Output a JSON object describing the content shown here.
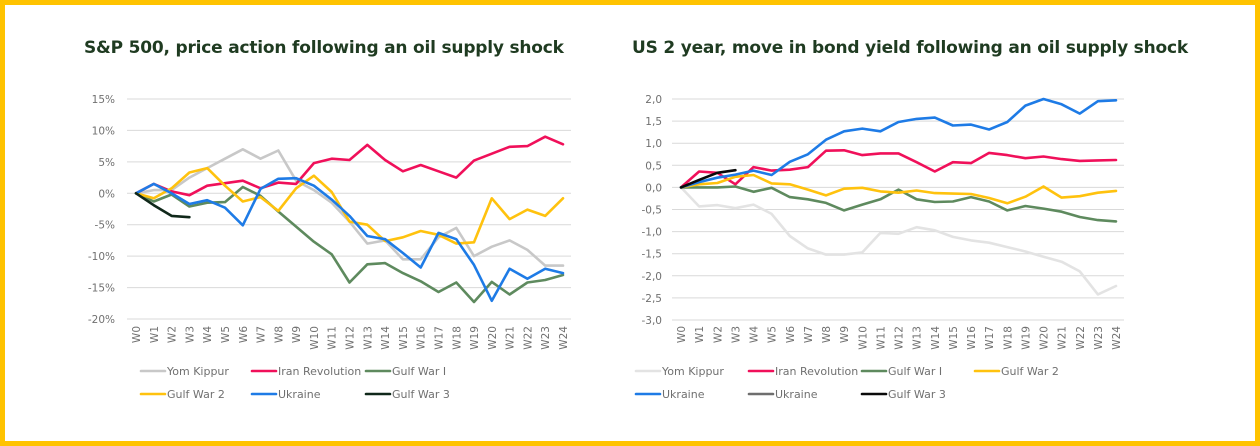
{
  "frame": {
    "border_color": "#FFC300"
  },
  "chart_data": [
    {
      "type": "line",
      "title": "S&P 500, price action following an oil supply shock",
      "xlabel": "",
      "ylabel": "",
      "x": [
        "W0",
        "W1",
        "W2",
        "W3",
        "W4",
        "W5",
        "W6",
        "W7",
        "W8",
        "W9",
        "W10",
        "W11",
        "W12",
        "W13",
        "W14",
        "W15",
        "W16",
        "W17",
        "W18",
        "W19",
        "W20",
        "W21",
        "W22",
        "W23",
        "W24"
      ],
      "yticks": [
        15,
        10,
        5,
        0,
        -5,
        -10,
        -15,
        -20
      ],
      "ytick_labels": [
        "15%",
        "10%",
        "5%",
        "0%",
        "-5%",
        "-10%",
        "-15%",
        "-20%"
      ],
      "ylim": [
        -20,
        15
      ],
      "grid": true,
      "legend_position": "bottom",
      "series": [
        {
          "name": "Yom Kippur",
          "color": "#C8C8C8",
          "values": [
            0,
            0.5,
            0.5,
            2.5,
            4,
            5.5,
            7,
            5.5,
            6.8,
            2,
            0.5,
            -1.5,
            -4.5,
            -8,
            -7.5,
            -10.5,
            -10.5,
            -7,
            -5.5,
            -10,
            -8.5,
            -7.5,
            -9,
            -11.5,
            -11.5
          ]
        },
        {
          "name": "Iran Revolution",
          "color": "#F0105A",
          "values": [
            0,
            1.5,
            0.3,
            -0.3,
            1.2,
            1.6,
            2,
            0.8,
            1.7,
            1.5,
            4.8,
            5.5,
            5.3,
            7.7,
            5.3,
            3.5,
            4.5,
            3.5,
            2.5,
            5.2,
            6.3,
            7.4,
            7.5,
            9,
            7.8
          ]
        },
        {
          "name": "Gulf War I",
          "color": "#5E8A5E",
          "values": [
            0,
            -1.3,
            -0.2,
            -2.1,
            -1.5,
            -1.4,
            1,
            -0.4,
            -2.9,
            -5.3,
            -7.7,
            -9.7,
            -14.2,
            -11.3,
            -11.1,
            -12.7,
            -14,
            -15.7,
            -14.2,
            -17.3,
            -14.1,
            -16.1,
            -14.2,
            -13.8,
            -13
          ]
        },
        {
          "name": "Gulf War 2",
          "color": "#FFC20E",
          "values": [
            0,
            -0.8,
            0.8,
            3.3,
            4,
            1.2,
            -1.3,
            -0.6,
            -2.8,
            0.8,
            2.8,
            0.2,
            -4.5,
            -5,
            -7.6,
            -7,
            -6,
            -6.6,
            -8,
            -7.8,
            -0.8,
            -4.1,
            -2.6,
            -3.6,
            -0.8
          ]
        },
        {
          "name": "Ukraine",
          "color": "#1E7BE6",
          "values": [
            0,
            1.5,
            0,
            -1.7,
            -1.1,
            -2.3,
            -5.1,
            0.7,
            2.3,
            2.4,
            1.2,
            -1,
            -3.6,
            -6.8,
            -7.3,
            -9.5,
            -11.8,
            -6.3,
            -7.3,
            -11.4,
            -17.1,
            -12,
            -13.6,
            -12,
            -12.7
          ]
        },
        {
          "name": "Gulf War 3",
          "color": "#10281A",
          "values": [
            0,
            -1.9,
            -3.6,
            -3.8
          ]
        }
      ]
    },
    {
      "type": "line",
      "title": "US 2 year, move in bond yield following an oil supply shock",
      "xlabel": "",
      "ylabel": "",
      "x": [
        "W0",
        "W1",
        "W2",
        "W3",
        "W4",
        "W5",
        "W6",
        "W7",
        "W8",
        "W9",
        "W10",
        "W11",
        "W12",
        "W13",
        "W14",
        "W15",
        "W16",
        "W17",
        "W18",
        "W19",
        "W20",
        "W21",
        "W22",
        "W23",
        "W24"
      ],
      "yticks": [
        2.0,
        1.5,
        1.0,
        0.5,
        0.0,
        -0.5,
        -1.0,
        -1.5,
        -2.0,
        -2.5,
        -3.0
      ],
      "ytick_labels": [
        "2,0",
        "1,5",
        "1,0",
        "0,5",
        "0,0",
        "-0,5",
        "-1,0",
        "-1,5",
        "-2,0",
        "-2,5",
        "-3,0"
      ],
      "ylim": [
        -3.0,
        2.0
      ],
      "grid": true,
      "legend_position": "bottom",
      "series": [
        {
          "name": "Yom Kippur",
          "color": "#E3E3E3",
          "values": [
            0,
            -0.43,
            -0.4,
            -0.47,
            -0.39,
            -0.6,
            -1.1,
            -1.38,
            -1.52,
            -1.52,
            -1.47,
            -1.03,
            -1.05,
            -0.9,
            -0.97,
            -1.12,
            -1.2,
            -1.25,
            -1.35,
            -1.45,
            -1.57,
            -1.68,
            -1.9,
            -2.42,
            -2.23
          ]
        },
        {
          "name": "Iran Revolution",
          "color": "#F0105A",
          "values": [
            0,
            0.36,
            0.33,
            0.07,
            0.46,
            0.38,
            0.4,
            0.46,
            0.83,
            0.84,
            0.73,
            0.77,
            0.77,
            0.57,
            0.36,
            0.57,
            0.55,
            0.78,
            0.73,
            0.66,
            0.7,
            0.64,
            0.6,
            0.61,
            0.62
          ]
        },
        {
          "name": "Gulf War I",
          "color": "#5E8A5E",
          "values": [
            0,
            0,
            0,
            0.02,
            -0.1,
            -0.01,
            -0.22,
            -0.27,
            -0.35,
            -0.52,
            -0.39,
            -0.27,
            -0.05,
            -0.27,
            -0.33,
            -0.32,
            -0.22,
            -0.32,
            -0.52,
            -0.42,
            -0.48,
            -0.55,
            -0.67,
            -0.74,
            -0.77
          ]
        },
        {
          "name": "Gulf War 2",
          "color": "#FFC20E",
          "values": [
            0,
            0.07,
            0.1,
            0.24,
            0.28,
            0.09,
            0.07,
            -0.05,
            -0.18,
            -0.03,
            -0.01,
            -0.09,
            -0.12,
            -0.07,
            -0.13,
            -0.14,
            -0.15,
            -0.24,
            -0.36,
            -0.21,
            0.02,
            -0.23,
            -0.2,
            -0.12,
            -0.08
          ]
        },
        {
          "name": "Ukraine",
          "color": "#1E7BE6",
          "values": [
            0,
            0.12,
            0.22,
            0.29,
            0.38,
            0.28,
            0.58,
            0.75,
            1.08,
            1.27,
            1.33,
            1.27,
            1.48,
            1.55,
            1.58,
            1.4,
            1.42,
            1.31,
            1.48,
            1.85,
            2.0,
            1.88,
            1.67,
            1.95,
            1.97
          ]
        },
        {
          "name": "Ukraine",
          "color": "#6E6E6E",
          "values": []
        },
        {
          "name": "Gulf War 3",
          "color": "#0A0A0A",
          "values": [
            0,
            0.17,
            0.33,
            0.39
          ]
        }
      ]
    }
  ]
}
